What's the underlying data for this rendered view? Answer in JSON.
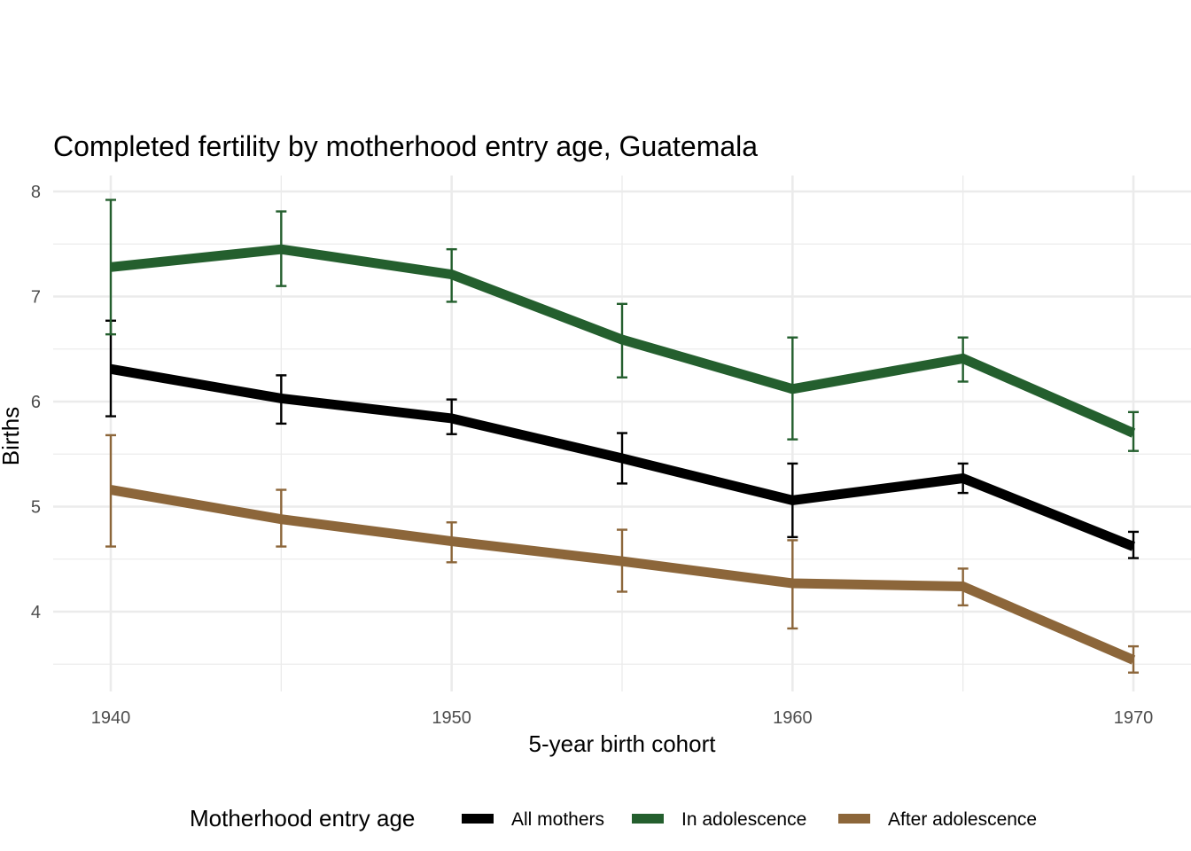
{
  "chart_data": {
    "type": "line",
    "title": "Completed fertility by motherhood entry age,  Guatemala",
    "xlabel": "5-year birth cohort",
    "ylabel": "Births",
    "x": [
      1940,
      1945,
      1950,
      1955,
      1960,
      1965,
      1970
    ],
    "x_ticks": [
      1940,
      1950,
      1960,
      1970
    ],
    "y_ticks": [
      4,
      5,
      6,
      7,
      8
    ],
    "xlim": [
      1938.3,
      1971.7
    ],
    "ylim": [
      3.3,
      8.0
    ],
    "grid": true,
    "legend": {
      "title": "Motherhood entry age",
      "position": "bottom"
    },
    "series": [
      {
        "name": "All mothers",
        "color": "#000000",
        "values": [
          6.31,
          6.03,
          5.84,
          5.46,
          5.06,
          5.27,
          4.62
        ],
        "upper": [
          6.77,
          6.25,
          6.02,
          5.7,
          5.41,
          5.41,
          4.76
        ],
        "lower": [
          5.86,
          5.79,
          5.69,
          5.22,
          4.71,
          5.13,
          4.51
        ]
      },
      {
        "name": "In adolescence",
        "color": "#245f2e",
        "values": [
          7.28,
          7.45,
          7.21,
          6.59,
          6.12,
          6.41,
          5.7
        ],
        "upper": [
          7.92,
          7.81,
          7.45,
          6.93,
          6.61,
          6.61,
          5.9
        ],
        "lower": [
          6.64,
          7.1,
          6.95,
          6.23,
          5.64,
          6.19,
          5.53
        ]
      },
      {
        "name": "After adolescence",
        "color": "#8c663a",
        "values": [
          5.16,
          4.88,
          4.67,
          4.48,
          4.27,
          4.24,
          3.54
        ],
        "upper": [
          5.68,
          5.16,
          4.85,
          4.78,
          4.68,
          4.41,
          3.67
        ],
        "lower": [
          4.62,
          4.62,
          4.47,
          4.19,
          3.84,
          4.06,
          3.42
        ]
      }
    ]
  }
}
